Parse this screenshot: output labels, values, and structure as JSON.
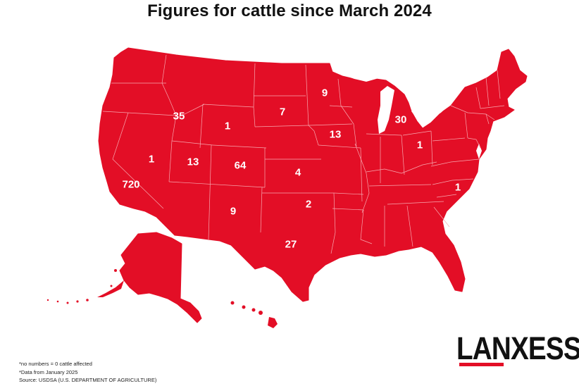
{
  "title": "Figures for cattle since March 2024",
  "colors": {
    "map_fill": "#e30e26",
    "state_border": "#f7a8b0",
    "label_text": "#ffffff",
    "logo_accent": "#e30e26"
  },
  "state_counts": [
    {
      "state": "Idaho",
      "value": "35"
    },
    {
      "state": "Wyoming",
      "value": "1"
    },
    {
      "state": "South Dakota",
      "value": "7"
    },
    {
      "state": "Minnesota",
      "value": "9"
    },
    {
      "state": "Michigan",
      "value": "30"
    },
    {
      "state": "Iowa",
      "value": "13"
    },
    {
      "state": "Ohio",
      "value": "1"
    },
    {
      "state": "Nevada",
      "value": "1"
    },
    {
      "state": "Utah",
      "value": "13"
    },
    {
      "state": "Colorado",
      "value": "64"
    },
    {
      "state": "Kansas",
      "value": "4"
    },
    {
      "state": "California",
      "value": "720"
    },
    {
      "state": "North Carolina",
      "value": "1"
    },
    {
      "state": "Oklahoma",
      "value": "2"
    },
    {
      "state": "New Mexico",
      "value": "9"
    },
    {
      "state": "Texas",
      "value": "27"
    }
  ],
  "notes": [
    "*no numbers = 0 cattle affected",
    "*Data from January 2025",
    "Source: USDSA (U.S. DEPARTMENT OF AGRICULTURE)"
  ],
  "logo": {
    "text": "LANXESS"
  }
}
